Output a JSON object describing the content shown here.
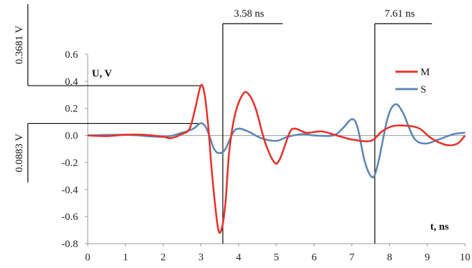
{
  "chart_data": {
    "type": "line",
    "xlabel": "t, ns",
    "ylabel": "U, V",
    "xlim": [
      0,
      10
    ],
    "ylim": [
      -0.8,
      0.6
    ],
    "xticks": [
      "0",
      "1",
      "2",
      "3",
      "4",
      "5",
      "6",
      "7",
      "8",
      "9",
      "10"
    ],
    "yticks": [
      "0.6",
      "0.4",
      "0.2",
      "0.0",
      "-0.2",
      "-0.4",
      "-0.6",
      "-0.8"
    ],
    "legend_position": "top-right",
    "grid": false,
    "series": [
      {
        "name": "M",
        "color": "#e8312a",
        "points": [
          [
            0,
            0
          ],
          [
            0.5,
            -0.005
          ],
          [
            1,
            0.005
          ],
          [
            1.5,
            0.005
          ],
          [
            2,
            -0.01
          ],
          [
            2.2,
            -0.02
          ],
          [
            2.5,
            0.01
          ],
          [
            2.7,
            0.05
          ],
          [
            2.85,
            0.2
          ],
          [
            3.0,
            0.37
          ],
          [
            3.1,
            0.3
          ],
          [
            3.2,
            0.05
          ],
          [
            3.3,
            -0.3
          ],
          [
            3.45,
            -0.68
          ],
          [
            3.55,
            -0.69
          ],
          [
            3.65,
            -0.5
          ],
          [
            3.75,
            -0.12
          ],
          [
            3.9,
            0.15
          ],
          [
            4.1,
            0.3
          ],
          [
            4.25,
            0.31
          ],
          [
            4.45,
            0.2
          ],
          [
            4.7,
            -0.05
          ],
          [
            4.95,
            -0.2
          ],
          [
            5.1,
            -0.17
          ],
          [
            5.35,
            0.02
          ],
          [
            5.5,
            0.05
          ],
          [
            5.8,
            0.02
          ],
          [
            6.2,
            0.03
          ],
          [
            6.6,
            0.0
          ],
          [
            7.0,
            -0.03
          ],
          [
            7.5,
            -0.04
          ],
          [
            7.8,
            0.03
          ],
          [
            8.1,
            0.07
          ],
          [
            8.5,
            0.07
          ],
          [
            8.8,
            0.05
          ],
          [
            9.1,
            -0.02
          ],
          [
            9.5,
            -0.07
          ],
          [
            9.8,
            -0.06
          ],
          [
            10,
            0.0
          ]
        ]
      },
      {
        "name": "S",
        "color": "#5a86b6",
        "points": [
          [
            0,
            0
          ],
          [
            1,
            0.005
          ],
          [
            2,
            -0.01
          ],
          [
            2.5,
            0.02
          ],
          [
            2.8,
            0.05
          ],
          [
            3.0,
            0.09
          ],
          [
            3.15,
            0.05
          ],
          [
            3.35,
            -0.1
          ],
          [
            3.5,
            -0.13
          ],
          [
            3.65,
            -0.1
          ],
          [
            3.85,
            0.02
          ],
          [
            4.0,
            0.05
          ],
          [
            4.25,
            0.03
          ],
          [
            4.6,
            -0.02
          ],
          [
            5.0,
            -0.04
          ],
          [
            5.3,
            -0.01
          ],
          [
            5.7,
            0.01
          ],
          [
            6.0,
            0.0
          ],
          [
            6.5,
            0.0
          ],
          [
            6.75,
            0.05
          ],
          [
            7.0,
            0.12
          ],
          [
            7.15,
            0.06
          ],
          [
            7.35,
            -0.2
          ],
          [
            7.55,
            -0.31
          ],
          [
            7.7,
            -0.2
          ],
          [
            7.95,
            0.13
          ],
          [
            8.15,
            0.23
          ],
          [
            8.35,
            0.17
          ],
          [
            8.65,
            -0.02
          ],
          [
            8.95,
            -0.06
          ],
          [
            9.3,
            -0.03
          ],
          [
            9.7,
            0.01
          ],
          [
            10,
            0.02
          ]
        ]
      }
    ],
    "annotations": [
      {
        "text": "3.58 ns",
        "x": 3.58
      },
      {
        "text": "7.61 ns",
        "x": 7.61
      },
      {
        "text": "0.3681 V",
        "y": 0.3681
      },
      {
        "text": "0.0883 V",
        "y": 0.0883
      }
    ]
  }
}
